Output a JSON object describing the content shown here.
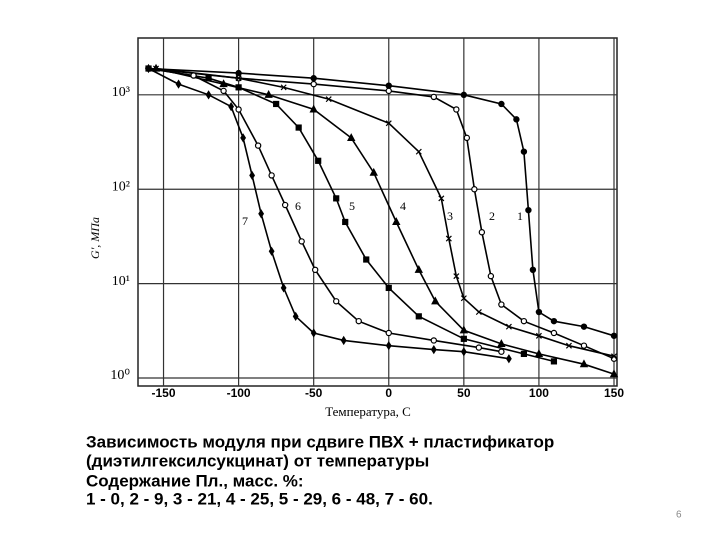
{
  "chart_data": {
    "type": "line",
    "x_label": "Температура, С",
    "y_label": "G', МПа",
    "xlim": [
      -167,
      152
    ],
    "ylim": [
      1,
      4000
    ],
    "log_y": true,
    "grid": true,
    "xticks": [
      -150,
      -100,
      -50,
      0,
      50,
      100,
      150
    ],
    "yticks": [
      {
        "value": 1,
        "label": "10⁰"
      },
      {
        "value": 10,
        "label": "10¹"
      },
      {
        "value": 100,
        "label": "10²"
      },
      {
        "value": 1000,
        "label": "10³"
      }
    ],
    "series": [
      {
        "name": "1",
        "color": "#000000",
        "marker": "circle-filled",
        "x": [
          -160,
          -100,
          -50,
          0,
          50,
          75,
          85,
          90,
          93,
          96,
          100,
          110,
          130,
          150
        ],
        "values": [
          1900,
          1700,
          1500,
          1250,
          1000,
          800,
          550,
          250,
          60,
          14,
          5,
          4,
          3.5,
          2.8
        ]
      },
      {
        "name": "2",
        "color": "#000000",
        "marker": "circle-open",
        "x": [
          -160,
          -100,
          -50,
          0,
          30,
          45,
          52,
          57,
          62,
          68,
          75,
          90,
          110,
          130,
          150
        ],
        "values": [
          1900,
          1500,
          1300,
          1100,
          950,
          700,
          350,
          100,
          35,
          12,
          6,
          4,
          3,
          2.2,
          1.6
        ]
      },
      {
        "name": "3",
        "color": "#000000",
        "marker": "x",
        "x": [
          -155,
          -100,
          -70,
          -40,
          0,
          20,
          35,
          40,
          45,
          50,
          60,
          80,
          100,
          120,
          150
        ],
        "values": [
          1900,
          1500,
          1200,
          900,
          500,
          250,
          80,
          30,
          12,
          7,
          5,
          3.5,
          2.8,
          2.2,
          1.7
        ]
      },
      {
        "name": "4",
        "color": "#000000",
        "marker": "triangle",
        "x": [
          -155,
          -110,
          -80,
          -50,
          -25,
          -10,
          5,
          20,
          31,
          50,
          75,
          100,
          130,
          150
        ],
        "values": [
          1900,
          1300,
          1000,
          700,
          350,
          150,
          45,
          14,
          6.5,
          3.2,
          2.3,
          1.8,
          1.4,
          1.1
        ]
      },
      {
        "name": "5",
        "color": "#000000",
        "marker": "square",
        "x": [
          -160,
          -120,
          -100,
          -75,
          -60,
          -47,
          -35,
          -29,
          -15,
          0,
          20,
          50,
          90,
          110
        ],
        "values": [
          1900,
          1500,
          1200,
          800,
          450,
          200,
          80,
          45,
          18,
          9,
          4.5,
          2.6,
          1.8,
          1.5
        ]
      },
      {
        "name": "6",
        "color": "#000000",
        "marker": "circle-open",
        "x": [
          -160,
          -130,
          -110,
          -100,
          -87,
          -78,
          -69,
          -58,
          -49,
          -35,
          -20,
          0,
          30,
          60,
          75
        ],
        "values": [
          1900,
          1600,
          1100,
          700,
          290,
          140,
          68,
          28,
          14,
          6.5,
          4,
          3,
          2.5,
          2.1,
          1.9
        ]
      },
      {
        "name": "7",
        "color": "#000000",
        "marker": "diamond",
        "x": [
          -160,
          -140,
          -120,
          -105,
          -97,
          -91,
          -85,
          -78,
          -70,
          -62,
          -50,
          -30,
          0,
          30,
          50,
          80
        ],
        "values": [
          1900,
          1300,
          1000,
          750,
          350,
          140,
          55,
          22,
          9,
          4.5,
          3,
          2.5,
          2.2,
          2,
          1.9,
          1.6
        ]
      }
    ],
    "caption": [
      "Зависимость модуля при сдвиге ПВХ + пластификатор",
      "(диэтилгексилсукцинат) от температуры",
      "Содержание Пл., масс. %:",
      "1 - 0, 2 - 9, 3 - 21, 4 - 25, 5 - 29, 6 - 48, 7 - 60."
    ]
  },
  "page_number": "6"
}
